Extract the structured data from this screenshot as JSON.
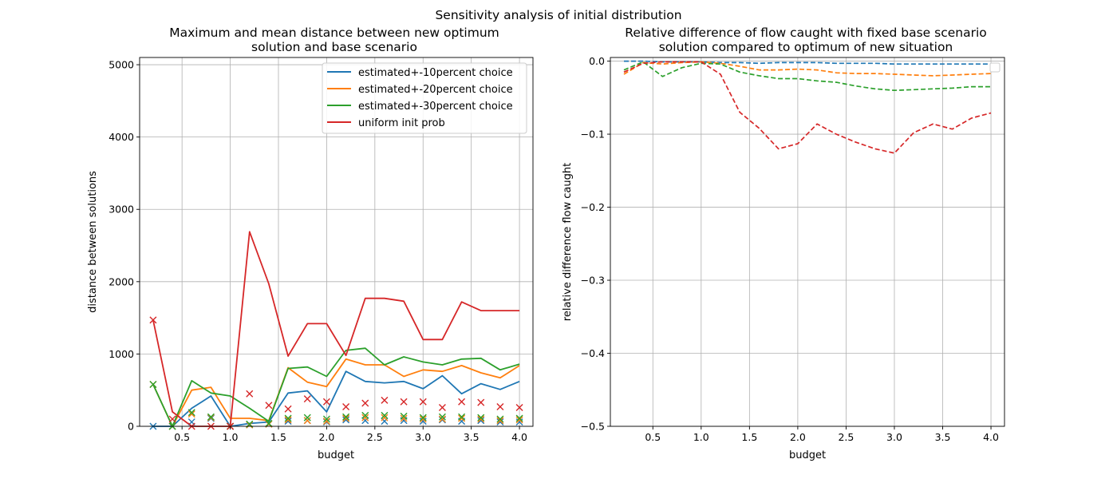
{
  "figure": {
    "title": "Sensitivity analysis of initial distribution"
  },
  "colors": {
    "blue": "#1f77b4",
    "orange": "#ff7f0e",
    "green": "#2ca02c",
    "red": "#d62728"
  },
  "chart_data": [
    {
      "type": "line",
      "title_lines": [
        "Maximum and mean distance between new optimum",
        "solution and base scenario"
      ],
      "xlabel": "budget",
      "ylabel": "distance between solutions",
      "xlim": [
        0.06,
        4.14
      ],
      "ylim": [
        0,
        5100
      ],
      "xticks": [
        0.5,
        1.0,
        1.5,
        2.0,
        2.5,
        3.0,
        3.5,
        4.0
      ],
      "xtick_labels": [
        "0.5",
        "1.0",
        "1.5",
        "2.0",
        "2.5",
        "3.0",
        "3.5",
        "4.0"
      ],
      "yticks": [
        0,
        1000,
        2000,
        3000,
        4000,
        5000
      ],
      "ytick_labels": [
        "0",
        "1000",
        "2000",
        "3000",
        "4000",
        "5000"
      ],
      "grid": true,
      "legend_position": "top-right",
      "x": [
        0.2,
        0.4,
        0.6,
        0.8,
        1.0,
        1.2,
        1.4,
        1.6,
        1.8,
        2.0,
        2.2,
        2.4,
        2.6,
        2.8,
        3.0,
        3.2,
        3.4,
        3.6,
        3.8,
        4.0
      ],
      "series": [
        {
          "name": "estimated+-10percent choice",
          "color": "#1f77b4",
          "max": [
            0,
            0,
            250,
            420,
            0,
            40,
            60,
            460,
            490,
            200,
            760,
            620,
            600,
            620,
            520,
            700,
            450,
            590,
            510,
            620
          ],
          "mean": [
            0,
            0,
            60,
            110,
            0,
            20,
            30,
            70,
            80,
            60,
            90,
            80,
            70,
            80,
            70,
            90,
            70,
            80,
            60,
            60
          ]
        },
        {
          "name": "estimated+-20percent choice",
          "color": "#ff7f0e",
          "max": [
            580,
            0,
            500,
            540,
            110,
            110,
            80,
            810,
            610,
            550,
            930,
            850,
            850,
            690,
            780,
            760,
            840,
            740,
            670,
            840
          ],
          "mean": [
            580,
            0,
            170,
            120,
            0,
            20,
            30,
            90,
            80,
            70,
            110,
            120,
            120,
            110,
            100,
            100,
            110,
            100,
            80,
            90
          ]
        },
        {
          "name": "estimated+-30percent choice",
          "color": "#2ca02c",
          "max": [
            580,
            0,
            630,
            460,
            420,
            250,
            70,
            800,
            820,
            690,
            1050,
            1080,
            850,
            960,
            890,
            850,
            930,
            940,
            780,
            860
          ],
          "mean": [
            580,
            0,
            190,
            130,
            0,
            30,
            40,
            110,
            120,
            100,
            130,
            150,
            150,
            140,
            120,
            130,
            130,
            120,
            100,
            110
          ]
        },
        {
          "name": "uniform init prob",
          "color": "#d62728",
          "max": [
            1470,
            200,
            0,
            0,
            0,
            2690,
            1970,
            970,
            1420,
            1420,
            980,
            1770,
            1770,
            1730,
            1200,
            1200,
            1720,
            1600,
            1600,
            1600
          ],
          "mean": [
            1470,
            100,
            0,
            0,
            0,
            450,
            290,
            240,
            380,
            340,
            270,
            320,
            360,
            340,
            340,
            260,
            340,
            330,
            270,
            260
          ]
        }
      ]
    },
    {
      "type": "line",
      "title_lines": [
        "Relative difference of flow caught with fixed base scenario",
        "solution compared to optimum of new situation"
      ],
      "xlabel": "budget",
      "ylabel": "relative difference flow caught",
      "xlim": [
        0.06,
        4.14
      ],
      "ylim": [
        -0.5,
        0.005
      ],
      "xticks": [
        0.5,
        1.0,
        1.5,
        2.0,
        2.5,
        3.0,
        3.5,
        4.0
      ],
      "xtick_labels": [
        "0.5",
        "1.0",
        "1.5",
        "2.0",
        "2.5",
        "3.0",
        "3.5",
        "4.0"
      ],
      "yticks": [
        0.0,
        -0.1,
        -0.2,
        -0.3,
        -0.4,
        -0.5
      ],
      "ytick_labels": [
        "0.0",
        "−0.1",
        "−0.2",
        "−0.3",
        "−0.4",
        "−0.5"
      ],
      "grid": true,
      "legend_position": "top-right",
      "line_style": "dashed",
      "x": [
        0.2,
        0.4,
        0.6,
        0.8,
        1.0,
        1.2,
        1.4,
        1.6,
        1.8,
        2.0,
        2.2,
        2.4,
        2.6,
        2.8,
        3.0,
        3.2,
        3.4,
        3.6,
        3.8,
        4.0
      ],
      "series": [
        {
          "color": "#1f77b4",
          "values": [
            0.0,
            0.0,
            -0.001,
            -0.001,
            -0.001,
            -0.002,
            -0.002,
            -0.003,
            -0.002,
            -0.002,
            -0.002,
            -0.003,
            -0.003,
            -0.003,
            -0.004,
            -0.004,
            -0.004,
            -0.004,
            -0.004,
            -0.004
          ]
        },
        {
          "color": "#ff7f0e",
          "values": [
            -0.018,
            -0.002,
            -0.004,
            -0.002,
            -0.001,
            -0.003,
            -0.007,
            -0.012,
            -0.012,
            -0.011,
            -0.012,
            -0.016,
            -0.017,
            -0.017,
            -0.018,
            -0.019,
            -0.02,
            -0.019,
            -0.018,
            -0.017
          ]
        },
        {
          "color": "#2ca02c",
          "values": [
            -0.012,
            -0.001,
            -0.021,
            -0.009,
            -0.003,
            -0.004,
            -0.015,
            -0.02,
            -0.024,
            -0.024,
            -0.027,
            -0.029,
            -0.034,
            -0.038,
            -0.04,
            -0.039,
            -0.038,
            -0.037,
            -0.035,
            -0.035
          ]
        },
        {
          "color": "#d62728",
          "values": [
            -0.015,
            -0.003,
            -0.001,
            -0.001,
            -0.001,
            -0.018,
            -0.07,
            -0.092,
            -0.12,
            -0.113,
            -0.086,
            -0.1,
            -0.111,
            -0.12,
            -0.126,
            -0.098,
            -0.086,
            -0.093,
            -0.078,
            -0.071
          ]
        }
      ]
    }
  ]
}
